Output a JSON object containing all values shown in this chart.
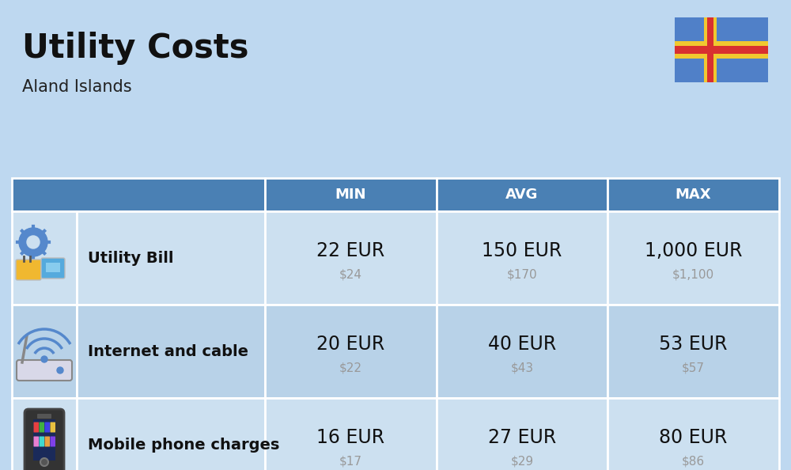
{
  "title": "Utility Costs",
  "subtitle": "Aland Islands",
  "background_color": "#bed8f0",
  "header_bg_color": "#4a80b4",
  "header_text_color": "#ffffff",
  "row_bg_color_even": "#cce0f0",
  "row_bg_color_odd": "#b8d2e8",
  "table_border_color": "#ffffff",
  "col_header": [
    "MIN",
    "AVG",
    "MAX"
  ],
  "title_color": "#111111",
  "subtitle_color": "#222222",
  "eur_color": "#111111",
  "usd_color": "#999999",
  "label_color": "#111111",
  "rows": [
    {
      "label": "Utility Bill",
      "icon": "utility",
      "min_eur": "22 EUR",
      "min_usd": "$24",
      "avg_eur": "150 EUR",
      "avg_usd": "$170",
      "max_eur": "1,000 EUR",
      "max_usd": "$1,100"
    },
    {
      "label": "Internet and cable",
      "icon": "internet",
      "min_eur": "20 EUR",
      "min_usd": "$22",
      "avg_eur": "40 EUR",
      "avg_usd": "$43",
      "max_eur": "53 EUR",
      "max_usd": "$57"
    },
    {
      "label": "Mobile phone charges",
      "icon": "mobile",
      "min_eur": "16 EUR",
      "min_usd": "$17",
      "avg_eur": "27 EUR",
      "avg_usd": "$29",
      "max_eur": "80 EUR",
      "max_usd": "$86"
    }
  ],
  "title_fontsize": 30,
  "subtitle_fontsize": 15,
  "header_fontsize": 13,
  "cell_eur_fontsize": 17,
  "cell_usd_fontsize": 11,
  "label_fontsize": 14,
  "flag": {
    "blue": "#5080c8",
    "yellow": "#f0c830",
    "red": "#d83030"
  }
}
